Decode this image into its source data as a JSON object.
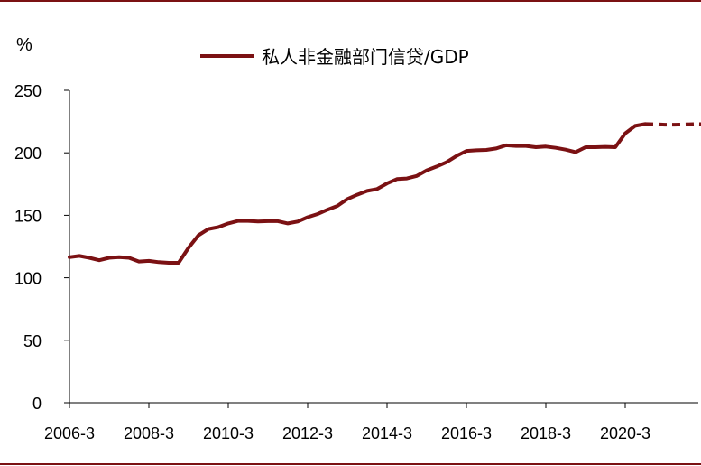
{
  "chart_data": {
    "type": "line",
    "title": "",
    "xlabel": "",
    "ylabel": "%",
    "ylim": [
      0,
      250
    ],
    "yticks": [
      0,
      50,
      100,
      150,
      200,
      250
    ],
    "xlim": [
      "2006-3",
      "2022-6"
    ],
    "xtick_labels": [
      "2006-3",
      "2008-3",
      "2010-3",
      "2012-3",
      "2014-3",
      "2016-3",
      "2018-3",
      "2020-3"
    ],
    "grid": false,
    "legend_position": "top",
    "line_color": "#7b1113",
    "frame_color": "#7b1113",
    "series": [
      {
        "name": "私人非金融部门信贷/GDP",
        "x": [
          "2006-3",
          "2006-6",
          "2006-9",
          "2006-12",
          "2007-3",
          "2007-6",
          "2007-9",
          "2007-12",
          "2008-3",
          "2008-6",
          "2008-9",
          "2008-12",
          "2009-3",
          "2009-6",
          "2009-9",
          "2009-12",
          "2010-3",
          "2010-6",
          "2010-9",
          "2010-12",
          "2011-3",
          "2011-6",
          "2011-9",
          "2011-12",
          "2012-3",
          "2012-6",
          "2012-9",
          "2012-12",
          "2013-3",
          "2013-6",
          "2013-9",
          "2013-12",
          "2014-3",
          "2014-6",
          "2014-9",
          "2014-12",
          "2015-3",
          "2015-6",
          "2015-9",
          "2015-12",
          "2016-3",
          "2016-6",
          "2016-9",
          "2016-12",
          "2017-3",
          "2017-6",
          "2017-9",
          "2017-12",
          "2018-3",
          "2018-6",
          "2018-9",
          "2018-12",
          "2019-3",
          "2019-6",
          "2019-9",
          "2019-12",
          "2020-3",
          "2020-6",
          "2020-9"
        ],
        "values": [
          116.5,
          117.5,
          116,
          114,
          116,
          116.5,
          116,
          113,
          113.5,
          112.5,
          112,
          112,
          124,
          134,
          139,
          140.5,
          143.5,
          145.5,
          145.5,
          145,
          145.3,
          145.3,
          143.5,
          145,
          148.5,
          151,
          154.5,
          157.5,
          163,
          166.5,
          169.5,
          171,
          175.5,
          179,
          179.5,
          181.5,
          186,
          189,
          192.5,
          197.5,
          201.5,
          202,
          202.3,
          203.5,
          206,
          205.5,
          205.5,
          204.5,
          205,
          204,
          202.5,
          200.5,
          204.5,
          204.5,
          204.8,
          204.5,
          215.5,
          221.5,
          223
        ]
      },
      {
        "name": "",
        "style": "dashed",
        "x": [
          "2020-9",
          "2020-12",
          "2021-3",
          "2021-6",
          "2021-9",
          "2021-12",
          "2022-3"
        ],
        "values": [
          223,
          222.8,
          222.5,
          222.5,
          222.7,
          223,
          222.8
        ]
      }
    ]
  }
}
